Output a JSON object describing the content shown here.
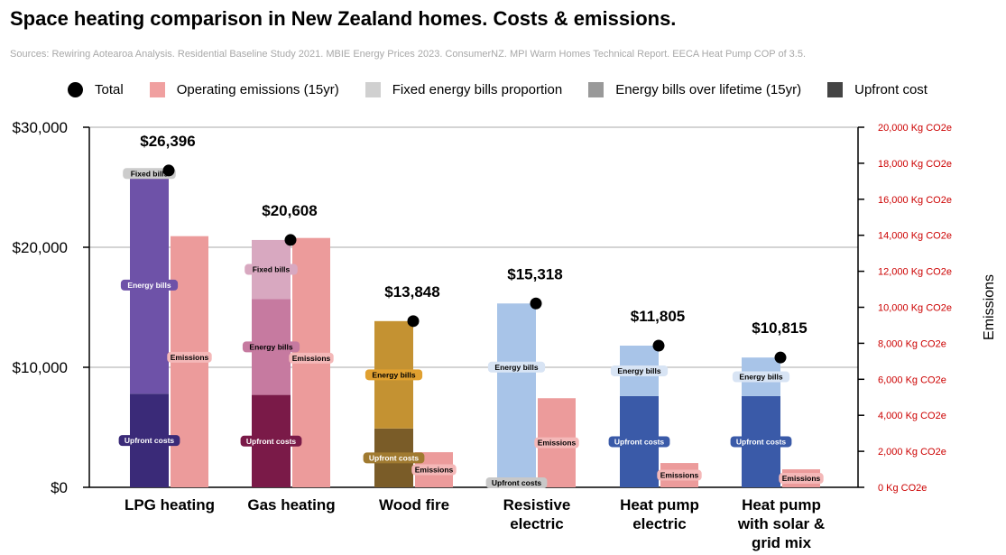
{
  "title": "Space heating comparison in New Zealand homes. Costs & emissions.",
  "subtitle": "Sources: Rewiring Aotearoa Analysis. Residential Baseline Study 2021. MBIE Energy Prices 2023. ConsumerNZ. MPI Warm Homes Technical Report. EECA Heat Pump COP of 3.5.",
  "legend": [
    {
      "label": "Total",
      "type": "dot",
      "color": "#000000"
    },
    {
      "label": "Operating emissions (15yr)",
      "type": "square",
      "color": "#f0a0a0"
    },
    {
      "label": "Fixed energy bills proportion",
      "type": "square",
      "color": "#d0d0d0"
    },
    {
      "label": "Energy bills over lifetime (15yr)",
      "type": "square",
      "color": "#999999"
    },
    {
      "label": "Upfront cost",
      "type": "square",
      "color": "#444444"
    }
  ],
  "chart_data": {
    "type": "bar",
    "title": "Space heating comparison in New Zealand homes. Costs & emissions.",
    "categories": [
      "LPG heating",
      "Gas heating",
      "Wood fire",
      "Resistive electric",
      "Heat pump electric",
      "Heat pump with solar & grid mix"
    ],
    "category_lines": [
      [
        "LPG heating"
      ],
      [
        "Gas heating"
      ],
      [
        "Wood fire"
      ],
      [
        "Resistive",
        "electric"
      ],
      [
        "Heat pump",
        "electric"
      ],
      [
        "Heat pump",
        "with solar &",
        "grid mix"
      ]
    ],
    "y_left": {
      "range": [
        0,
        30000
      ],
      "ticks": [
        0,
        10000,
        20000,
        30000
      ],
      "tick_labels": [
        "$0",
        "$10,000",
        "$20,000",
        "$30,000"
      ]
    },
    "y_right": {
      "label": "Emissions",
      "range": [
        0,
        20000
      ],
      "ticks": [
        0,
        2000,
        4000,
        6000,
        8000,
        10000,
        12000,
        14000,
        16000,
        18000,
        20000
      ],
      "tick_labels": [
        "0 Kg CO2e",
        "2,000 Kg CO2e",
        "4,000 Kg CO2e",
        "6,000 Kg CO2e",
        "8,000 Kg CO2e",
        "10,000 Kg CO2e",
        "12,000 Kg CO2e",
        "14,000 Kg CO2e",
        "16,000 Kg CO2e",
        "18,000 Kg CO2e",
        "20,000 Kg CO2e"
      ]
    },
    "grid": true,
    "legend_position": "top",
    "segment_labels": {
      "upfront": "Upfront costs",
      "energy": "Energy bills",
      "fixed": "Fixed bills",
      "emissions": "Emissions"
    },
    "upfront_cost": [
      7800,
      7700,
      4900,
      200,
      7600,
      7600
    ],
    "energy_bills": [
      18096,
      8000,
      8948,
      15118,
      4205,
      3215
    ],
    "fixed_bills": [
      500,
      4908,
      0,
      0,
      0,
      0
    ],
    "total": [
      26396,
      20608,
      13848,
      15318,
      11805,
      10815
    ],
    "total_labels": [
      "$26,396",
      "$20,608",
      "$13,848",
      "$15,318",
      "$11,805",
      "$10,815"
    ],
    "emissions_kg": [
      13950,
      13850,
      1950,
      4950,
      1350,
      1000
    ],
    "colors": {
      "upfront": [
        "#3a2a78",
        "#7a1a48",
        "#7a5c28",
        "#6080c0",
        "#3a5aa8",
        "#3a5aa8"
      ],
      "energy": [
        "#6e52a8",
        "#c67aa0",
        "#c49232",
        "#a8c4e8",
        "#a8c4e8",
        "#a8c4e8"
      ],
      "fixed": [
        "#bbbbbb",
        "#d8a8c0",
        "#c49232",
        "#a8c4e8",
        "#a8c4e8",
        "#a8c4e8"
      ],
      "emissions": "#ec9b9b",
      "right_axis": "#cc0000",
      "tag_bg": {
        "upfront": [
          "#3a2a78",
          "#7a1a48",
          "#a07a30",
          "#c8c8c8",
          "#3a5aa8",
          "#3a5aa8"
        ],
        "energy": [
          "#6e52a8",
          "#c67aa0",
          "#e0a030",
          "#d8e4f4",
          "#d8e4f4",
          "#d8e4f4"
        ],
        "fixed": [
          "#cccccc",
          "#d8a8c0"
        ]
      }
    }
  }
}
